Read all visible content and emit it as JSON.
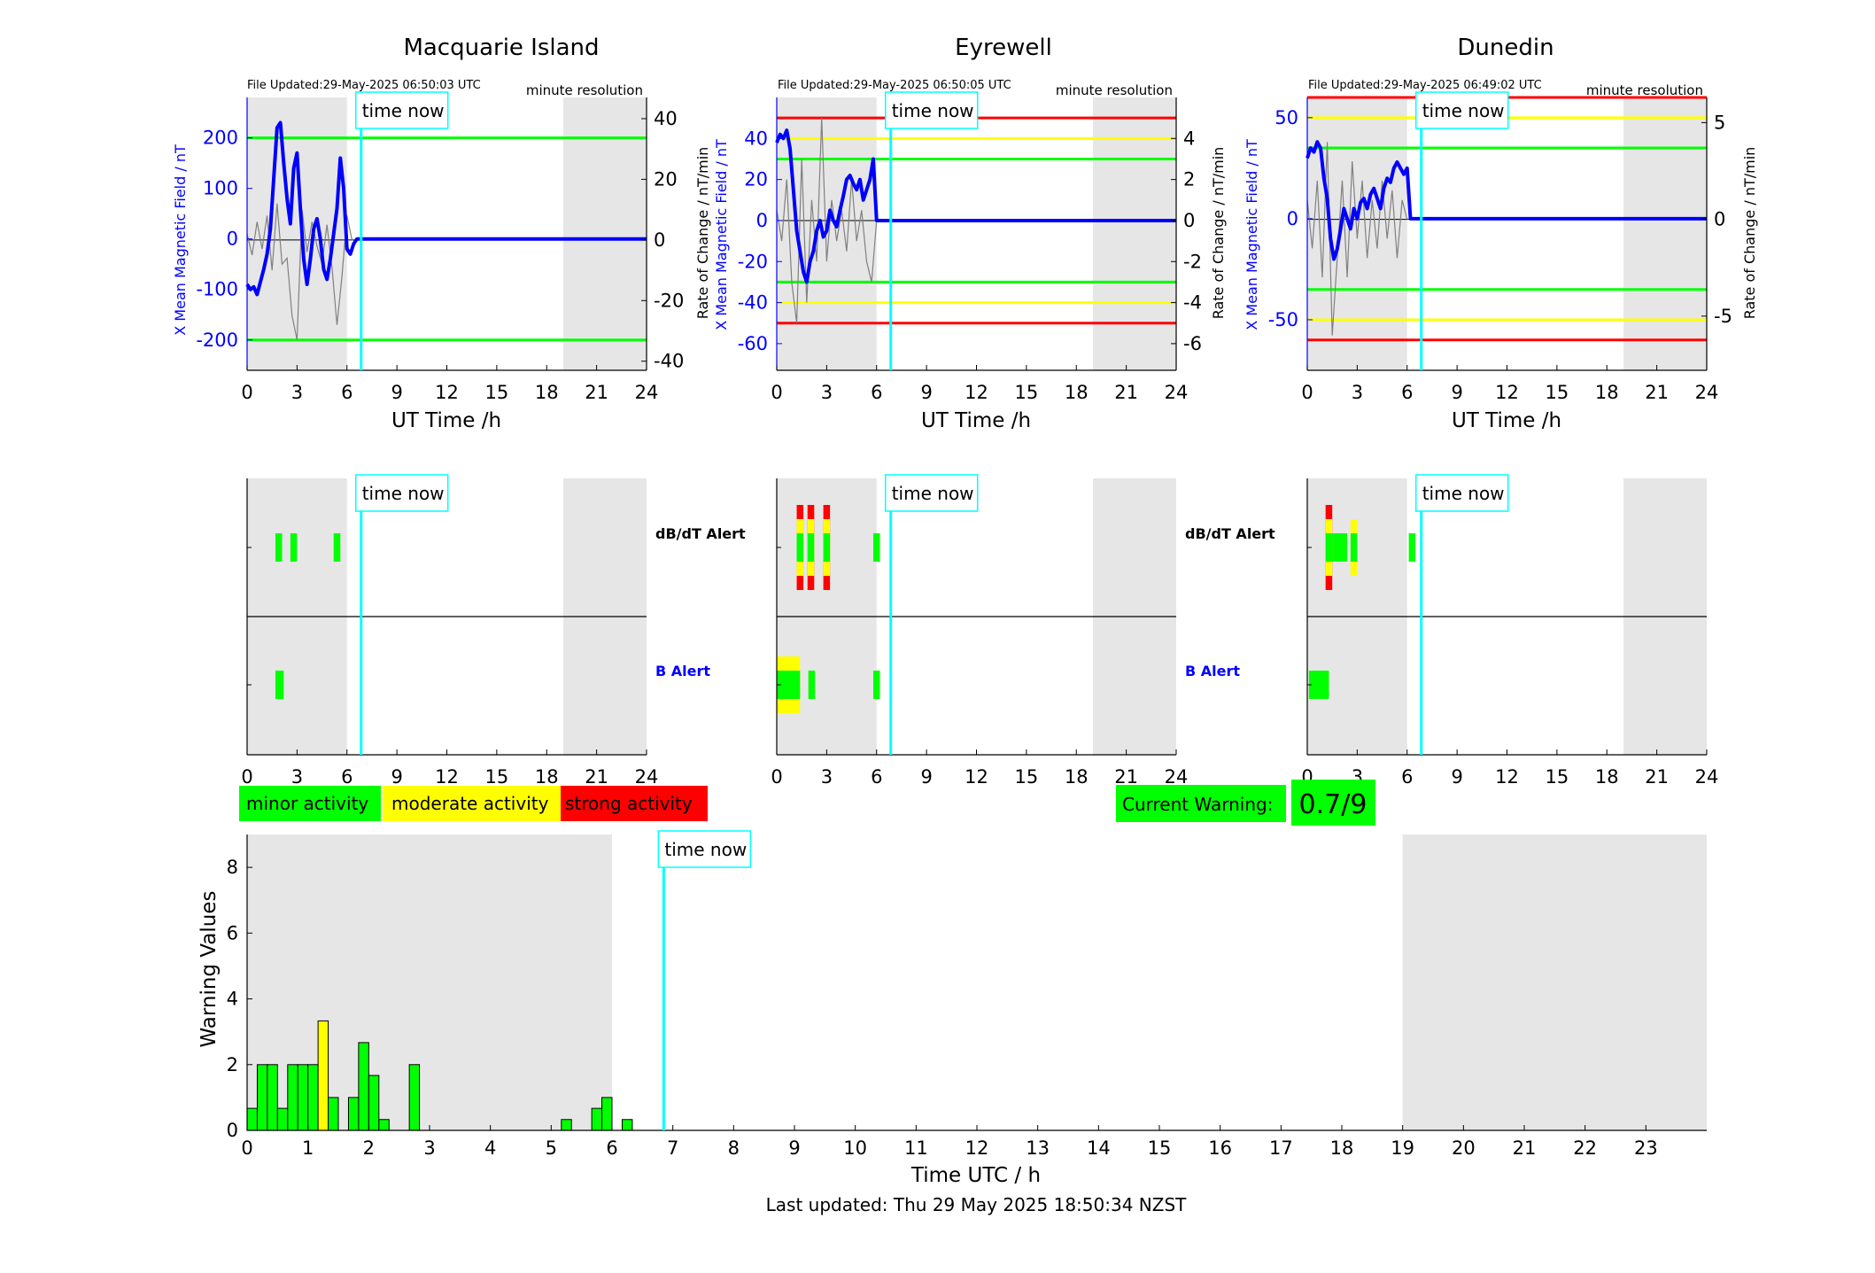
{
  "colors": {
    "shade": "#e6e6e6",
    "blue": "#0000ff",
    "cyan": "#00ffff",
    "green": "#00ff00",
    "yellow": "#ffff00",
    "red": "#ff0000",
    "grey": "#808080"
  },
  "legend": {
    "minor": "minor activity",
    "moderate": "moderate activity",
    "strong": "strong activity"
  },
  "current_warning": {
    "label": "Current Warning:",
    "value": "0.7/9"
  },
  "footer": "Last updated: Thu 29 May 2025 18:50:34 NZST",
  "chart_data": [
    {
      "type": "line",
      "station": "Macquarie Island",
      "file_updated": "File Updated:29-May-2025 06:50:03 UTC",
      "resolution": "minute resolution",
      "xlabel": "UT Time /h",
      "ylabel_left": "X Mean Magnetic Field / nT",
      "ylabel_right": "Rate of Change / nT/min",
      "xlim": [
        0,
        24
      ],
      "ylim_left": [
        -260,
        280
      ],
      "ylim_right": [
        -43,
        47
      ],
      "yticks_left": [
        -200,
        -100,
        0,
        100,
        200
      ],
      "yticks_right": [
        -40,
        -20,
        0,
        20,
        40
      ],
      "time_now": 6.85,
      "time_now_label": "time now",
      "thresholds": [
        {
          "value": 200,
          "color": "green"
        },
        {
          "value": -200,
          "color": "green"
        }
      ],
      "series": [
        {
          "name": "X Mean Magnetic Field",
          "x": [
            0,
            0.2,
            0.4,
            0.6,
            0.8,
            1.0,
            1.2,
            1.4,
            1.6,
            1.8,
            2.0,
            2.2,
            2.4,
            2.6,
            2.8,
            3.0,
            3.2,
            3.4,
            3.6,
            3.8,
            4.0,
            4.2,
            4.4,
            4.6,
            4.8,
            5.0,
            5.2,
            5.4,
            5.6,
            5.8,
            6.0,
            6.2,
            6.4,
            6.6,
            6.8,
            7.0,
            24
          ],
          "y": [
            -90,
            -100,
            -95,
            -110,
            -85,
            -60,
            -30,
            20,
            120,
            220,
            230,
            150,
            80,
            30,
            140,
            170,
            60,
            -40,
            -90,
            -40,
            20,
            40,
            0,
            -60,
            -80,
            -40,
            10,
            60,
            160,
            100,
            -20,
            -30,
            -10,
            0,
            0,
            0,
            0
          ]
        },
        {
          "name": "Rate of Change",
          "x": [
            0,
            0.3,
            0.6,
            0.9,
            1.2,
            1.5,
            1.8,
            2.1,
            2.4,
            2.7,
            3.0,
            3.3,
            3.6,
            3.9,
            4.2,
            4.5,
            4.8,
            5.1,
            5.4,
            5.7,
            6.0,
            6.3
          ],
          "y": [
            2,
            -5,
            6,
            -3,
            8,
            -10,
            12,
            -8,
            -6,
            -25,
            -33,
            10,
            -4,
            6,
            -2,
            -8,
            5,
            -9,
            -28,
            -12,
            8,
            0
          ]
        }
      ]
    },
    {
      "type": "line",
      "station": "Eyrewell",
      "file_updated": "File Updated:29-May-2025 06:50:05 UTC",
      "resolution": "minute resolution",
      "xlabel": "UT Time /h",
      "ylabel_left": "X Mean Magnetic Field / nT",
      "ylabel_right": "Rate of Change / nT/min",
      "xlim": [
        0,
        24
      ],
      "ylim_left": [
        -73,
        60
      ],
      "ylim_right": [
        -7.3,
        6
      ],
      "yticks_left": [
        -60,
        -40,
        -20,
        0,
        20,
        40
      ],
      "yticks_right": [
        -6,
        -4,
        -2,
        0,
        2,
        4
      ],
      "time_now": 6.85,
      "time_now_label": "time now",
      "thresholds": [
        {
          "value": 50,
          "color": "red"
        },
        {
          "value": 40,
          "color": "yellow"
        },
        {
          "value": 30,
          "color": "green"
        },
        {
          "value": -30,
          "color": "green"
        },
        {
          "value": -40,
          "color": "yellow"
        },
        {
          "value": -50,
          "color": "red"
        }
      ],
      "series": [
        {
          "name": "X Mean Magnetic Field",
          "x": [
            0,
            0.2,
            0.4,
            0.6,
            0.8,
            1.0,
            1.2,
            1.4,
            1.6,
            1.8,
            2.0,
            2.2,
            2.4,
            2.6,
            2.8,
            3.0,
            3.2,
            3.4,
            3.6,
            3.8,
            4.0,
            4.2,
            4.4,
            4.6,
            4.8,
            5.0,
            5.2,
            5.4,
            5.6,
            5.8,
            6.0,
            6.2,
            24
          ],
          "y": [
            38,
            42,
            40,
            44,
            35,
            15,
            -5,
            -15,
            -25,
            -30,
            -20,
            -15,
            -5,
            0,
            -8,
            -5,
            5,
            0,
            -3,
            5,
            12,
            20,
            22,
            18,
            15,
            20,
            10,
            15,
            20,
            30,
            0,
            0,
            0
          ]
        },
        {
          "name": "Rate of Change",
          "x": [
            0,
            0.3,
            0.6,
            0.9,
            1.2,
            1.5,
            1.8,
            2.1,
            2.4,
            2.7,
            3.0,
            3.3,
            3.6,
            3.9,
            4.2,
            4.5,
            4.8,
            5.1,
            5.4,
            5.7,
            6.0
          ],
          "y": [
            0.5,
            -1,
            2,
            -3,
            -5,
            3,
            -4,
            1,
            -2,
            5,
            -2,
            1,
            -1,
            0.5,
            -1.5,
            2,
            -1,
            0.5,
            -2,
            -3,
            0
          ]
        }
      ]
    },
    {
      "type": "line",
      "station": "Dunedin",
      "file_updated": "File Updated:29-May-2025 06:49:02 UTC",
      "resolution": "minute resolution",
      "xlabel": "UT Time /h",
      "ylabel_left": "X Mean Magnetic Field / nT",
      "ylabel_right": "Rate of Change / nT/min",
      "xlim": [
        0,
        24
      ],
      "ylim_left": [
        -75,
        60
      ],
      "ylim_right": [
        -7.8,
        6.3
      ],
      "yticks_left": [
        -50,
        0,
        50
      ],
      "yticks_right": [
        -5,
        0,
        5
      ],
      "time_now": 6.85,
      "time_now_label": "time now",
      "thresholds": [
        {
          "value": 60,
          "color": "red"
        },
        {
          "value": 50,
          "color": "yellow"
        },
        {
          "value": 35,
          "color": "green"
        },
        {
          "value": -35,
          "color": "green"
        },
        {
          "value": -50,
          "color": "yellow"
        },
        {
          "value": -60,
          "color": "red"
        }
      ],
      "series": [
        {
          "name": "X Mean Magnetic Field",
          "x": [
            0,
            0.2,
            0.4,
            0.6,
            0.8,
            1.0,
            1.2,
            1.4,
            1.6,
            1.8,
            2.0,
            2.2,
            2.4,
            2.6,
            2.8,
            3.0,
            3.2,
            3.4,
            3.6,
            3.8,
            4.0,
            4.2,
            4.4,
            4.6,
            4.8,
            5.0,
            5.2,
            5.4,
            5.6,
            5.8,
            6.0,
            6.2,
            6.4,
            24
          ],
          "y": [
            30,
            35,
            33,
            38,
            35,
            20,
            10,
            -10,
            -20,
            -15,
            -5,
            5,
            0,
            -5,
            5,
            0,
            8,
            10,
            5,
            12,
            15,
            10,
            5,
            15,
            20,
            18,
            25,
            28,
            25,
            22,
            25,
            0,
            0,
            0
          ]
        },
        {
          "name": "Rate of Change",
          "x": [
            0,
            0.3,
            0.6,
            0.9,
            1.2,
            1.5,
            1.8,
            2.1,
            2.4,
            2.7,
            3.0,
            3.3,
            3.6,
            3.9,
            4.2,
            4.5,
            4.8,
            5.1,
            5.4,
            5.7,
            6.0
          ],
          "y": [
            1,
            -1.5,
            2,
            -3,
            4,
            -6,
            -2,
            2,
            -3,
            3,
            -1,
            2,
            -2,
            1,
            -1.5,
            2,
            -1,
            1.5,
            -2,
            1,
            0
          ]
        }
      ]
    },
    {
      "type": "bar",
      "station": "Macquarie Island",
      "panel": "alerts",
      "xlim": [
        0,
        24
      ],
      "time_now": 6.85,
      "time_now_label": "time now",
      "rows": [
        {
          "label": "dB/dT Alert",
          "color": "#000000",
          "segments": [
            [
              1.7,
              2.1,
              "minor"
            ],
            [
              2.6,
              3.0,
              "minor"
            ],
            [
              5.2,
              5.6,
              "minor"
            ]
          ]
        },
        {
          "label": "B Alert",
          "color": "#0000ff",
          "segments": [
            [
              1.7,
              2.2,
              "minor"
            ]
          ]
        }
      ]
    },
    {
      "type": "bar",
      "station": "Eyrewell",
      "panel": "alerts",
      "xlim": [
        0,
        24
      ],
      "time_now": 6.85,
      "time_now_label": "time now",
      "rows": [
        {
          "label": "dB/dT Alert",
          "color": "#000000",
          "segments": [
            [
              1.2,
              1.6,
              "strong"
            ],
            [
              1.85,
              2.25,
              "strong"
            ],
            [
              2.8,
              3.2,
              "strong"
            ],
            [
              5.8,
              6.2,
              "minor"
            ]
          ]
        },
        {
          "label": "B Alert",
          "color": "#0000ff",
          "segments": [
            [
              0.0,
              1.4,
              "moderate"
            ],
            [
              1.9,
              2.3,
              "minor"
            ],
            [
              5.8,
              6.2,
              "minor"
            ]
          ]
        }
      ]
    },
    {
      "type": "bar",
      "station": "Dunedin",
      "panel": "alerts",
      "xlim": [
        0,
        24
      ],
      "time_now": 6.85,
      "time_now_label": "time now",
      "rows": [
        {
          "label": "",
          "color": "#000000",
          "segments": [
            [
              1.1,
              1.5,
              "strong"
            ],
            [
              1.5,
              2.4,
              "minor"
            ],
            [
              2.6,
              3.0,
              "moderate"
            ],
            [
              6.1,
              6.5,
              "minor"
            ]
          ]
        },
        {
          "label": "",
          "color": "#0000ff",
          "segments": [
            [
              0.1,
              1.3,
              "minor"
            ]
          ]
        }
      ]
    },
    {
      "type": "bar",
      "panel": "warning",
      "xlabel": "Time UTC / h",
      "ylabel": "Warning Values",
      "xlim": [
        0,
        24
      ],
      "ylim": [
        0,
        9
      ],
      "yticks": [
        0,
        2,
        4,
        6,
        8
      ],
      "time_now": 6.85,
      "time_now_label": "time now",
      "bar_width_h": 0.1667,
      "bars": [
        [
          0.0,
          0.67,
          "minor"
        ],
        [
          0.167,
          2.0,
          "minor"
        ],
        [
          0.333,
          2.0,
          "minor"
        ],
        [
          0.5,
          0.67,
          "minor"
        ],
        [
          0.667,
          2.0,
          "minor"
        ],
        [
          0.833,
          2.0,
          "minor"
        ],
        [
          1.0,
          2.0,
          "minor"
        ],
        [
          1.167,
          3.33,
          "moderate"
        ],
        [
          1.333,
          1.0,
          "minor"
        ],
        [
          1.667,
          1.0,
          "minor"
        ],
        [
          1.833,
          2.67,
          "minor"
        ],
        [
          2.0,
          1.67,
          "minor"
        ],
        [
          2.167,
          0.33,
          "minor"
        ],
        [
          2.667,
          2.0,
          "minor"
        ],
        [
          5.167,
          0.33,
          "minor"
        ],
        [
          5.667,
          0.67,
          "minor"
        ],
        [
          5.833,
          1.0,
          "minor"
        ],
        [
          6.167,
          0.33,
          "minor"
        ]
      ]
    }
  ]
}
